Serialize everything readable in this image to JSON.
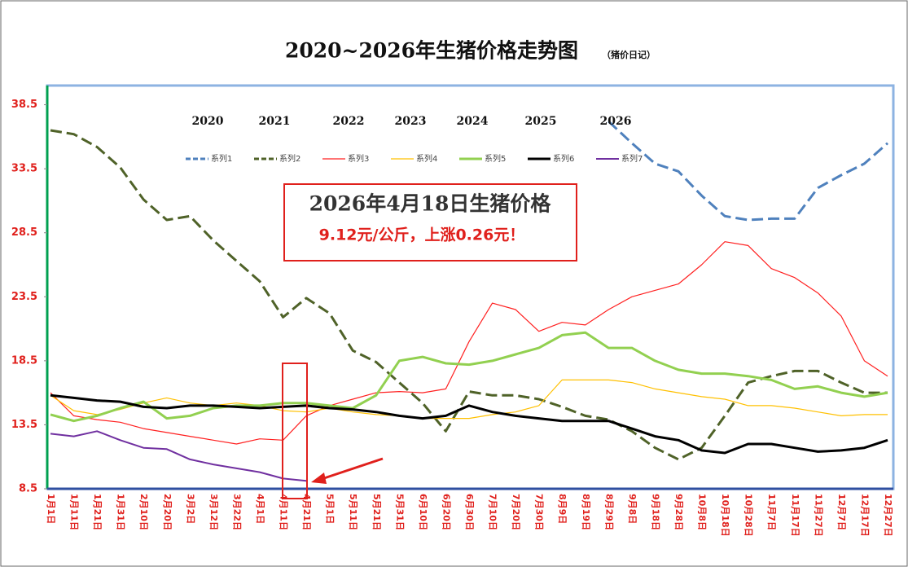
{
  "chart_data": {
    "type": "line",
    "title": "2020~2026年生猪价格走势图",
    "subtitle": "（猪价日记）",
    "categories": [
      "1月1日",
      "1月11日",
      "1月21日",
      "1月31日",
      "2月10日",
      "2月20日",
      "3月2日",
      "3月12日",
      "3月22日",
      "4月1日",
      "4月11日",
      "4月21日",
      "5月1日",
      "5月11日",
      "5月21日",
      "5月31日",
      "6月10日",
      "6月20日",
      "6月30日",
      "7月10日",
      "7月20日",
      "7月30日",
      "8月9日",
      "8月19日",
      "8月29日",
      "9月8日",
      "9月18日",
      "9月28日",
      "10月8日",
      "10月18日",
      "10月28日",
      "11月7日",
      "11月17日",
      "11月27日",
      "12月7日",
      "12月17日",
      "12月27日"
    ],
    "year_labels": [
      "2020",
      "2021",
      "2022",
      "2023",
      "2024",
      "2025",
      "2026"
    ],
    "ylim": [
      8.5,
      40
    ],
    "yticks": [
      8.5,
      13.5,
      18.5,
      23.5,
      28.5,
      33.5,
      38.5
    ],
    "legend": "top",
    "annotation": {
      "title": "2026年4月18日生猪价格",
      "text": "9.12元/公斤，上涨0.26元！"
    },
    "series": [
      {
        "name": "系列1",
        "color": "#4f81bd",
        "dashed": true,
        "width": 3,
        "values": [
          null,
          null,
          null,
          null,
          null,
          null,
          null,
          null,
          null,
          null,
          null,
          null,
          null,
          null,
          null,
          null,
          null,
          null,
          null,
          null,
          null,
          null,
          null,
          null,
          37.2,
          35.5,
          33.9,
          33.3,
          31.4,
          29.8,
          29.5,
          29.6,
          29.6,
          32.0,
          33.0,
          33.9,
          35.5
        ]
      },
      {
        "name": "系列2",
        "color": "#4f6228",
        "dashed": true,
        "width": 3,
        "values": [
          36.5,
          36.2,
          35.2,
          33.6,
          31.1,
          29.5,
          29.8,
          27.9,
          26.3,
          24.7,
          21.9,
          23.4,
          22.2,
          19.3,
          18.4,
          16.8,
          15.2,
          13.0,
          16.1,
          15.8,
          15.8,
          15.5,
          14.9,
          14.2,
          13.9,
          13.0,
          11.7,
          10.8,
          11.7,
          14.2,
          16.8,
          17.3,
          17.7,
          17.7,
          16.8,
          16.0,
          16.0
        ]
      },
      {
        "name": "系列3",
        "color": "#ff2020",
        "dashed": false,
        "width": 1.2,
        "values": [
          16.0,
          14.2,
          13.9,
          13.7,
          13.2,
          12.9,
          12.6,
          12.3,
          12.0,
          12.4,
          12.3,
          14.2,
          15.0,
          15.5,
          16.0,
          16.1,
          16.0,
          16.3,
          20.0,
          23.0,
          22.5,
          20.8,
          21.5,
          21.3,
          22.5,
          23.5,
          24.0,
          24.5,
          26.0,
          27.8,
          27.5,
          25.7,
          25.0,
          23.8,
          22.0,
          18.5,
          17.3
        ]
      },
      {
        "name": "系列4",
        "color": "#ffc000",
        "dashed": false,
        "width": 1.2,
        "values": [
          15.8,
          14.6,
          14.3,
          14.7,
          15.2,
          15.6,
          15.2,
          15.0,
          15.2,
          15.0,
          14.6,
          14.5,
          14.8,
          14.5,
          14.3,
          14.2,
          14.0,
          14.0,
          14.0,
          14.3,
          14.5,
          15.0,
          17.0,
          17.0,
          17.0,
          16.8,
          16.3,
          16.0,
          15.7,
          15.5,
          15.0,
          15.0,
          14.8,
          14.5,
          14.2,
          14.3,
          14.3
        ]
      },
      {
        "name": "系列5",
        "color": "#92d050",
        "dashed": false,
        "width": 3,
        "values": [
          14.3,
          13.8,
          14.2,
          14.8,
          15.3,
          14.0,
          14.2,
          14.8,
          15.0,
          15.0,
          15.2,
          15.2,
          15.0,
          14.8,
          15.8,
          18.5,
          18.8,
          18.3,
          18.2,
          18.5,
          19.0,
          19.5,
          20.5,
          20.7,
          19.5,
          19.5,
          18.5,
          17.8,
          17.5,
          17.5,
          17.3,
          17.0,
          16.3,
          16.5,
          16.0,
          15.7,
          16.0
        ]
      },
      {
        "name": "系列6",
        "color": "#000000",
        "dashed": false,
        "width": 3,
        "values": [
          15.8,
          15.6,
          15.4,
          15.3,
          14.9,
          14.8,
          15.0,
          15.0,
          14.9,
          14.8,
          14.9,
          15.0,
          14.8,
          14.7,
          14.5,
          14.2,
          14.0,
          14.2,
          15.0,
          14.5,
          14.2,
          14.0,
          13.8,
          13.8,
          13.8,
          13.2,
          12.6,
          12.3,
          11.5,
          11.3,
          12.0,
          12.0,
          11.7,
          11.4,
          11.5,
          11.7,
          12.3
        ]
      },
      {
        "name": "系列7",
        "color": "#7030a0",
        "dashed": false,
        "width": 2,
        "values": [
          12.8,
          12.6,
          13.0,
          12.3,
          11.7,
          11.6,
          10.8,
          10.4,
          10.1,
          9.8,
          9.3,
          9.12,
          null,
          null,
          null,
          null,
          null,
          null,
          null,
          null,
          null,
          null,
          null,
          null,
          null,
          null,
          null,
          null,
          null,
          null,
          null,
          null,
          null,
          null,
          null,
          null,
          null
        ]
      }
    ]
  }
}
